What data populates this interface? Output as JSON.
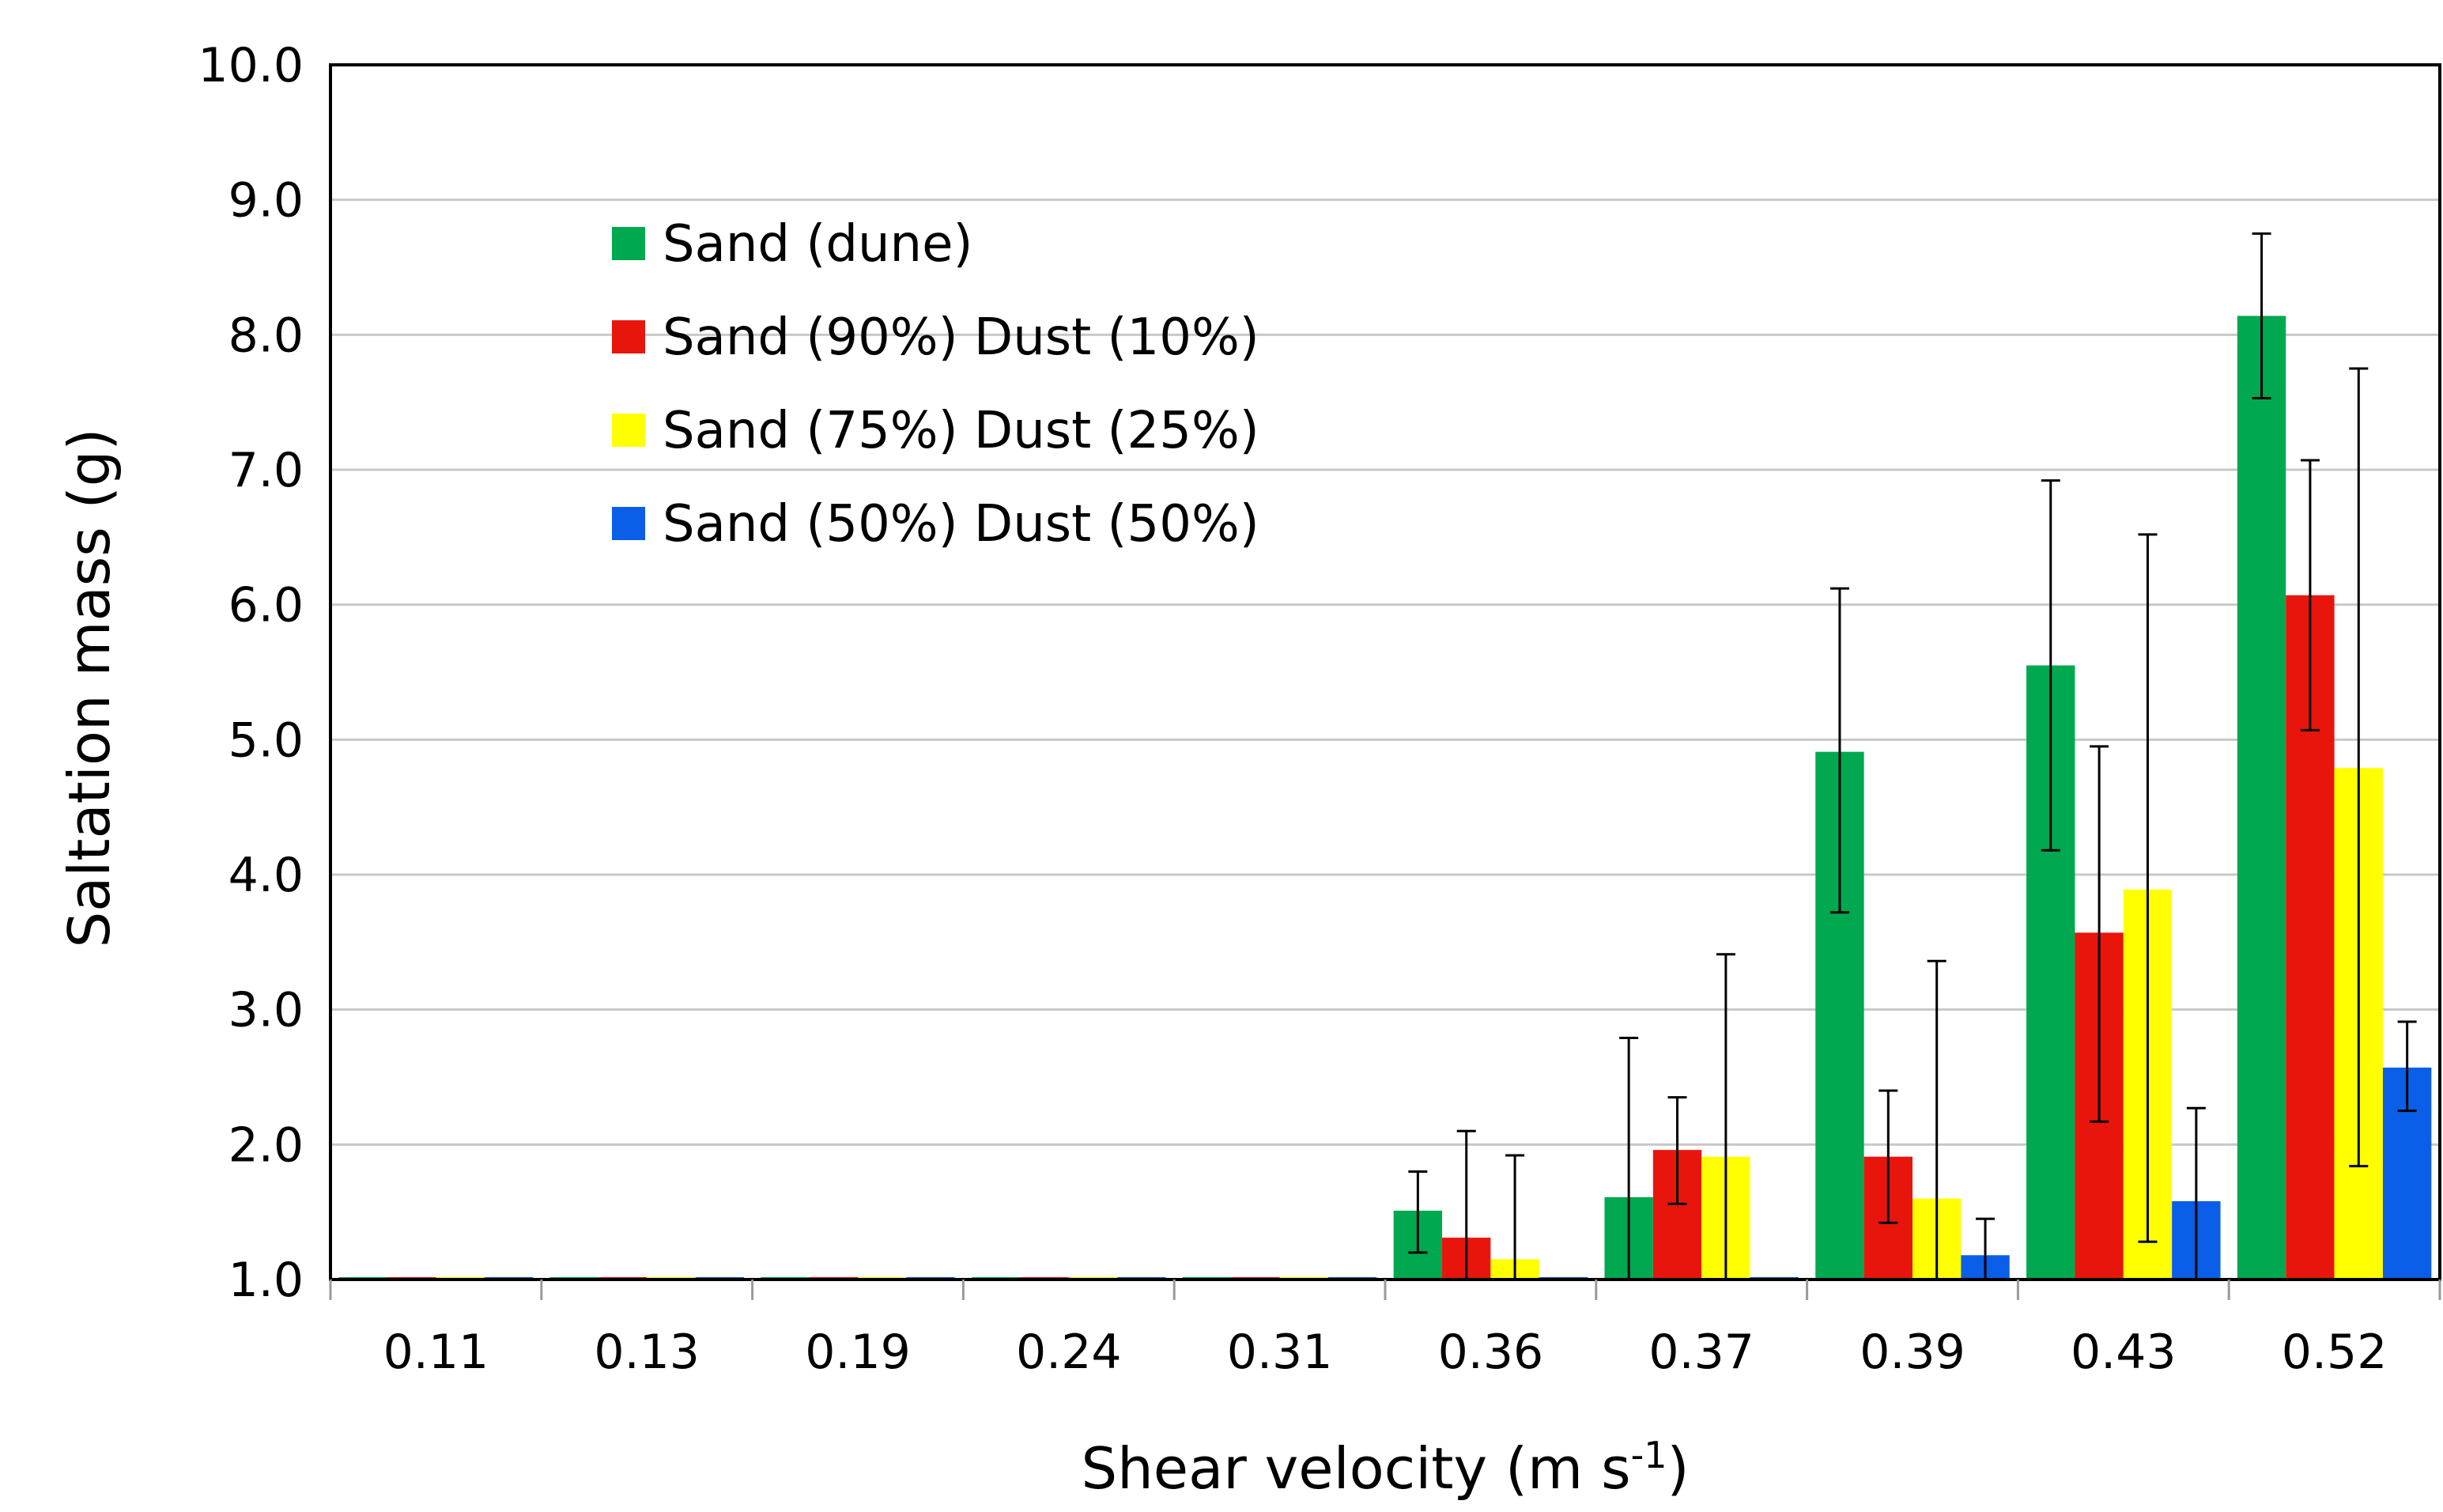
{
  "chart_data": {
    "type": "bar",
    "title": "",
    "xlabel": "Shear velocity (m s",
    "xlabel_superscript": "-1",
    "xlabel_suffix": ")",
    "ylabel": "Saltation mass (g)",
    "ylim": [
      1.0,
      10.0
    ],
    "yticks": [
      "1.0",
      "2.0",
      "3.0",
      "4.0",
      "5.0",
      "6.0",
      "7.0",
      "8.0",
      "9.0",
      "10.0"
    ],
    "grid": true,
    "legend_position": "top-left",
    "categories": [
      "0.11",
      "0.13",
      "0.19",
      "0.24",
      "0.31",
      "0.36",
      "0.37",
      "0.39",
      "0.43",
      "0.52"
    ],
    "series": [
      {
        "name": "Sand (dune)",
        "color": "#00a84f",
        "values": [
          1.0,
          1.0,
          1.0,
          1.0,
          1.0,
          1.51,
          1.61,
          4.91,
          5.55,
          8.14
        ],
        "err_low": [
          null,
          null,
          null,
          null,
          null,
          1.2,
          1.0,
          3.72,
          4.18,
          7.53
        ],
        "err_high": [
          null,
          null,
          null,
          null,
          null,
          1.8,
          2.79,
          6.12,
          6.92,
          8.75
        ]
      },
      {
        "name": "Sand (90%) Dust (10%)",
        "color": "#e8150d",
        "values": [
          1.0,
          1.0,
          1.0,
          1.0,
          1.0,
          1.31,
          1.96,
          1.91,
          3.57,
          6.07
        ],
        "err_low": [
          null,
          null,
          null,
          null,
          null,
          1.0,
          1.56,
          1.42,
          2.17,
          5.07
        ],
        "err_high": [
          null,
          null,
          null,
          null,
          null,
          2.1,
          2.35,
          2.4,
          4.95,
          7.07
        ]
      },
      {
        "name": "Sand (75%) Dust (25%)",
        "color": "#ffff00",
        "values": [
          1.0,
          1.0,
          1.0,
          1.0,
          1.0,
          1.15,
          1.91,
          1.6,
          3.89,
          4.79
        ],
        "err_low": [
          null,
          null,
          null,
          null,
          null,
          1.0,
          1.0,
          1.0,
          1.28,
          1.84
        ],
        "err_high": [
          null,
          null,
          null,
          null,
          null,
          1.92,
          3.41,
          3.36,
          6.52,
          7.75
        ]
      },
      {
        "name": "Sand (50%) Dust (50%)",
        "color": "#0a5ee8",
        "values": [
          1.0,
          1.0,
          1.0,
          1.0,
          1.0,
          1.0,
          1.0,
          1.18,
          1.58,
          2.57
        ],
        "err_low": [
          null,
          null,
          null,
          null,
          null,
          null,
          null,
          1.0,
          1.0,
          2.25
        ],
        "err_high": [
          null,
          null,
          null,
          null,
          null,
          null,
          null,
          1.45,
          2.27,
          2.91
        ]
      }
    ]
  }
}
